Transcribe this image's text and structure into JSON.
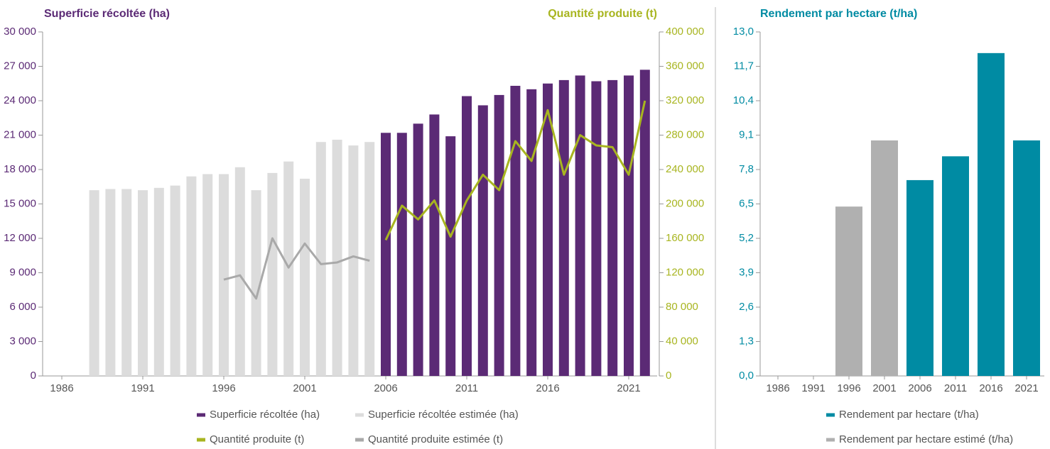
{
  "chart_data": [
    {
      "type": "bar",
      "ylabel": "Superficie récoltée (ha)",
      "y2label": "Quantité produite (t)",
      "categories": [
        "1986",
        null,
        null,
        null,
        null,
        "1991",
        null,
        null,
        null,
        null,
        "1996",
        null,
        null,
        null,
        null,
        "2001",
        null,
        null,
        null,
        null,
        "2006",
        null,
        null,
        null,
        null,
        "2011",
        null,
        null,
        null,
        null,
        "2016",
        null,
        null,
        null,
        null,
        "2021",
        null
      ],
      "series": [
        {
          "name": "Superficie récoltée (ha)",
          "type": "bar",
          "color": "#5b2a75",
          "values": [
            null,
            null,
            null,
            null,
            null,
            null,
            null,
            null,
            null,
            null,
            null,
            null,
            null,
            null,
            null,
            null,
            null,
            null,
            null,
            null,
            21200,
            21200,
            22000,
            22800,
            20900,
            24400,
            23600,
            24500,
            25300,
            25000,
            25500,
            25800,
            26200,
            25700,
            25800,
            26200,
            26700
          ]
        },
        {
          "name": "Superficie récoltée estimée (ha)",
          "type": "bar",
          "color": "#dcdcdc",
          "values": [
            null,
            null,
            16200,
            16300,
            16300,
            16200,
            16400,
            16600,
            17400,
            17600,
            17600,
            18200,
            16200,
            17700,
            18700,
            17200,
            20400,
            20600,
            20100,
            20400,
            null,
            null,
            null,
            null,
            null,
            null,
            null,
            null,
            null,
            null,
            null,
            null,
            null,
            null,
            null,
            null,
            null
          ]
        },
        {
          "name": "Quantité produite (t)",
          "type": "line",
          "axis": "y2",
          "color": "#a8b520",
          "values": [
            null,
            null,
            null,
            null,
            null,
            null,
            null,
            null,
            null,
            null,
            null,
            null,
            null,
            null,
            null,
            null,
            null,
            null,
            null,
            null,
            158000,
            198000,
            182000,
            204000,
            162000,
            204000,
            234000,
            216000,
            273000,
            250000,
            309000,
            234000,
            280000,
            268000,
            266000,
            234000,
            320000
          ]
        },
        {
          "name": "Quantité produite estimée (t)",
          "type": "line",
          "axis": "y2",
          "color": "#a9a9a9",
          "values": [
            null,
            null,
            null,
            null,
            null,
            null,
            null,
            null,
            null,
            null,
            112000,
            117000,
            90000,
            160000,
            126000,
            154000,
            130000,
            132000,
            139000,
            134000,
            null,
            null,
            null,
            null,
            null,
            null,
            null,
            null,
            null,
            null,
            null,
            null,
            null,
            null,
            null,
            null,
            null
          ]
        }
      ],
      "ylim": [
        0,
        30000
      ],
      "yticks": [
        0,
        {
          "value": 3000,
          "label": "3 000"
        },
        {
          "value": 6000,
          "label": "6 000"
        },
        {
          "value": 9000,
          "label": "9 000"
        },
        {
          "value": 12000,
          "label": "12 000"
        },
        {
          "value": 15000,
          "label": "15 000"
        },
        {
          "value": 18000,
          "label": "18 000"
        },
        {
          "value": 21000,
          "label": "21 000"
        },
        {
          "value": 24000,
          "label": "24 000"
        },
        {
          "value": 27000,
          "label": "27 000"
        },
        {
          "value": 30000,
          "label": "30 000"
        }
      ],
      "y2lim": [
        0,
        400000
      ],
      "y2ticks": [
        0,
        {
          "value": 40000,
          "label": "40 000"
        },
        {
          "value": 80000,
          "label": "80 000"
        },
        {
          "value": 120000,
          "label": "120 000"
        },
        {
          "value": 160000,
          "label": "160 000"
        },
        {
          "value": 200000,
          "label": "200 000"
        },
        {
          "value": 240000,
          "label": "240 000"
        },
        {
          "value": 280000,
          "label": "280 000"
        },
        {
          "value": 320000,
          "label": "320 000"
        },
        {
          "value": 360000,
          "label": "360 000"
        },
        {
          "value": 400000,
          "label": "400 000"
        }
      ]
    },
    {
      "type": "bar",
      "ylabel": "Rendement par hectare (t/ha)",
      "categories": [
        "1986",
        "1991",
        "1996",
        "2001",
        "2006",
        "2011",
        "2016",
        "2021"
      ],
      "series": [
        {
          "name": "Rendement par hectare (t/ha)",
          "type": "bar",
          "color": "#008ba3",
          "values": [
            null,
            null,
            null,
            null,
            7.4,
            8.3,
            12.2,
            8.9
          ]
        },
        {
          "name": "Rendement par hectare estimé (t/ha)",
          "type": "bar",
          "color": "#b0b0b0",
          "values": [
            null,
            null,
            6.4,
            8.9,
            null,
            null,
            null,
            null
          ]
        }
      ],
      "ylim": [
        0,
        13
      ],
      "yticks": [
        {
          "value": 0,
          "label": "0,0"
        },
        {
          "value": 1.3,
          "label": "1,3"
        },
        {
          "value": 2.6,
          "label": "2,6"
        },
        {
          "value": 3.9,
          "label": "3,9"
        },
        {
          "value": 5.2,
          "label": "5,2"
        },
        {
          "value": 6.5,
          "label": "6,5"
        },
        {
          "value": 7.8,
          "label": "7,8"
        },
        {
          "value": 9.1,
          "label": "9,1"
        },
        {
          "value": 10.4,
          "label": "10,4"
        },
        {
          "value": 11.7,
          "label": "11,7"
        },
        {
          "value": 13,
          "label": "13,0"
        }
      ]
    }
  ]
}
